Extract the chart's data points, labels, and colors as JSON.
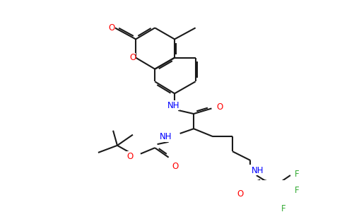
{
  "background_color": "#ffffff",
  "bond_color": "#1a1a1a",
  "N_color": "#0000ff",
  "O_color": "#ff0000",
  "F_color": "#33aa33",
  "lw": 1.5,
  "fs": 8.5,
  "dbo": 0.035,
  "xlim": [
    0,
    4.84
  ],
  "ylim": [
    0,
    3.0
  ]
}
